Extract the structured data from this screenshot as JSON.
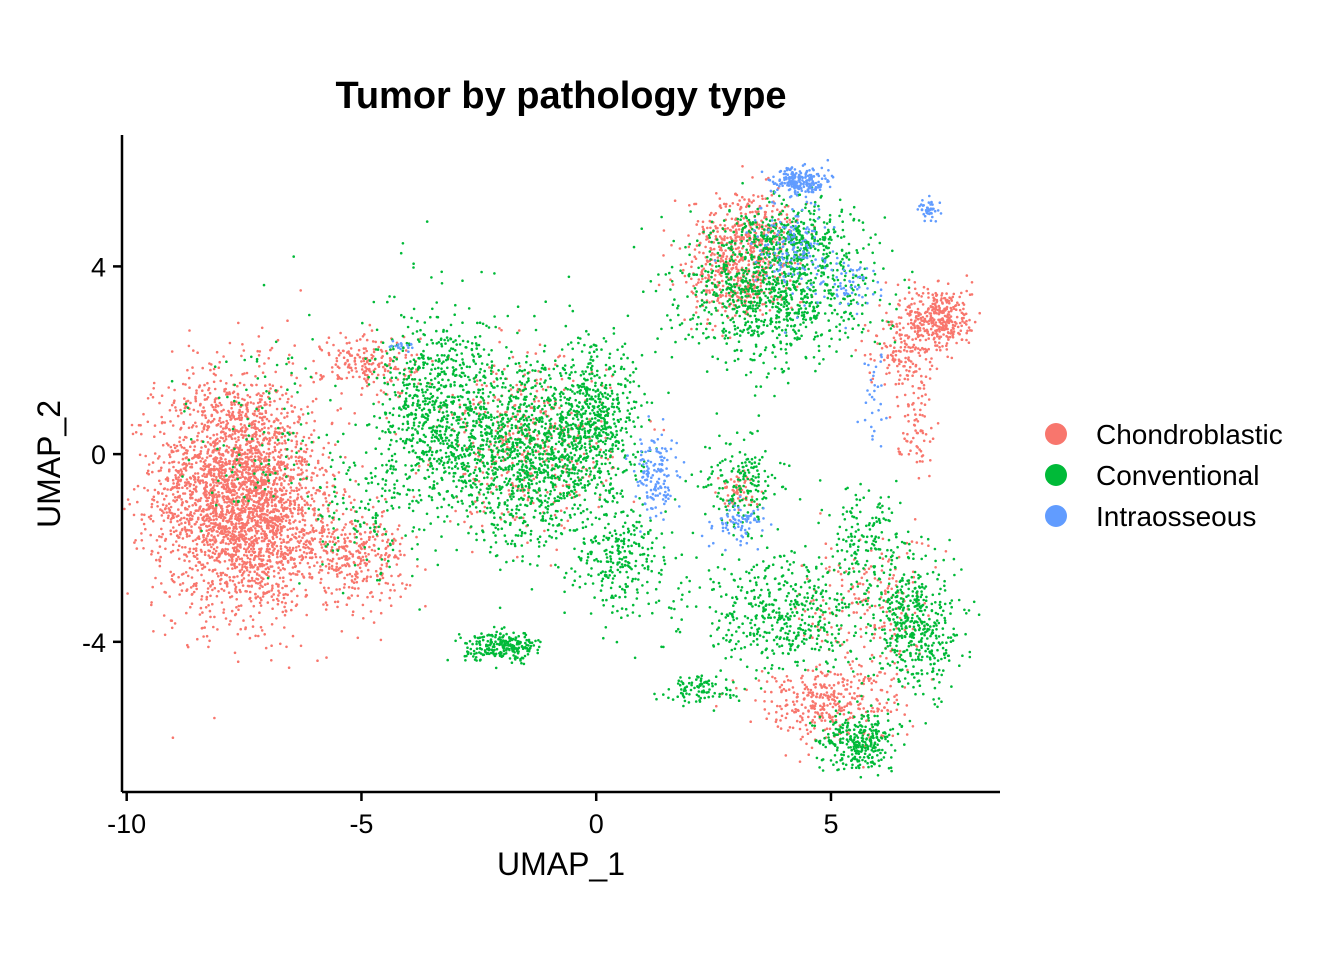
{
  "chart_data": {
    "type": "scatter",
    "title": "Tumor by pathology type",
    "xlabel": "UMAP_1",
    "ylabel": "UMAP_2",
    "xlim": [
      -10.1,
      8.6
    ],
    "ylim": [
      -7.2,
      6.8
    ],
    "xticks": [
      -10,
      -5,
      0,
      5
    ],
    "yticks": [
      -4,
      0,
      4
    ],
    "xtick_labels": [
      "-10",
      "-5",
      "0",
      "5"
    ],
    "ytick_labels": [
      "-4",
      "0",
      "4"
    ],
    "grid": false,
    "legend_position": "right",
    "series": [
      {
        "name": "Chondroblastic",
        "color": "#F8766D",
        "clusters": [
          {
            "cx": -7.7,
            "cy": -0.8,
            "sx": 0.85,
            "sy": 1.25,
            "n": 2600
          },
          {
            "cx": -6.9,
            "cy": -1.6,
            "sx": 0.7,
            "sy": 0.8,
            "n": 500
          },
          {
            "cx": -5.2,
            "cy": -2.2,
            "sx": 0.6,
            "sy": 0.5,
            "n": 350
          },
          {
            "cx": -4.8,
            "cy": 1.9,
            "sx": 0.5,
            "sy": 0.35,
            "n": 200
          },
          {
            "cx": -1.5,
            "cy": 0.2,
            "sx": 0.9,
            "sy": 0.9,
            "n": 400
          },
          {
            "cx": 3.2,
            "cy": 4.6,
            "sx": 0.6,
            "sy": 0.5,
            "n": 450
          },
          {
            "cx": 2.9,
            "cy": 3.6,
            "sx": 0.5,
            "sy": 0.4,
            "n": 250
          },
          {
            "cx": 7.3,
            "cy": 2.9,
            "sx": 0.35,
            "sy": 0.35,
            "n": 350
          },
          {
            "cx": 6.5,
            "cy": 2.2,
            "sx": 0.35,
            "sy": 0.4,
            "n": 150
          },
          {
            "cx": 6.8,
            "cy": 0.8,
            "sx": 0.2,
            "sy": 0.6,
            "n": 80
          },
          {
            "cx": 3.0,
            "cy": -0.8,
            "sx": 0.2,
            "sy": 0.2,
            "n": 60
          },
          {
            "cx": 4.9,
            "cy": -5.3,
            "sx": 0.8,
            "sy": 0.4,
            "n": 350
          },
          {
            "cx": 5.8,
            "cy": -3.3,
            "sx": 0.7,
            "sy": 0.8,
            "n": 200
          }
        ]
      },
      {
        "name": "Conventional",
        "color": "#00BA38",
        "clusters": [
          {
            "cx": -3.3,
            "cy": 0.8,
            "sx": 0.7,
            "sy": 1.1,
            "n": 900
          },
          {
            "cx": -1.3,
            "cy": 0.0,
            "sx": 0.8,
            "sy": 1.0,
            "n": 1100
          },
          {
            "cx": 0.0,
            "cy": 0.7,
            "sx": 0.5,
            "sy": 0.8,
            "n": 500
          },
          {
            "cx": -2.0,
            "cy": -4.1,
            "sx": 0.4,
            "sy": 0.15,
            "n": 250
          },
          {
            "cx": 3.8,
            "cy": 3.4,
            "sx": 1.0,
            "sy": 0.7,
            "n": 900
          },
          {
            "cx": 4.2,
            "cy": 4.6,
            "sx": 0.7,
            "sy": 0.4,
            "n": 350
          },
          {
            "cx": 3.1,
            "cy": -0.6,
            "sx": 0.4,
            "sy": 0.5,
            "n": 180
          },
          {
            "cx": 0.6,
            "cy": -2.3,
            "sx": 0.5,
            "sy": 0.6,
            "n": 250
          },
          {
            "cx": 4.0,
            "cy": -3.4,
            "sx": 1.0,
            "sy": 0.6,
            "n": 500
          },
          {
            "cx": 6.8,
            "cy": -3.7,
            "sx": 0.45,
            "sy": 0.7,
            "n": 450
          },
          {
            "cx": 5.6,
            "cy": -6.1,
            "sx": 0.4,
            "sy": 0.3,
            "n": 300
          },
          {
            "cx": 5.8,
            "cy": -1.8,
            "sx": 0.4,
            "sy": 0.6,
            "n": 150
          },
          {
            "cx": 2.2,
            "cy": -5.0,
            "sx": 0.4,
            "sy": 0.15,
            "n": 100
          },
          {
            "cx": -7.0,
            "cy": 0.3,
            "sx": 0.8,
            "sy": 1.2,
            "n": 120
          },
          {
            "cx": -5.0,
            "cy": -1.2,
            "sx": 0.6,
            "sy": 0.8,
            "n": 120
          }
        ]
      },
      {
        "name": "Intraosseous",
        "color": "#619CFF",
        "clusters": [
          {
            "cx": 4.3,
            "cy": 5.8,
            "sx": 0.3,
            "sy": 0.15,
            "n": 220
          },
          {
            "cx": 4.2,
            "cy": 4.3,
            "sx": 0.45,
            "sy": 0.5,
            "n": 150
          },
          {
            "cx": 5.4,
            "cy": 3.6,
            "sx": 0.3,
            "sy": 0.3,
            "n": 60
          },
          {
            "cx": 7.1,
            "cy": 5.2,
            "sx": 0.1,
            "sy": 0.12,
            "n": 45
          },
          {
            "cx": 1.3,
            "cy": -0.5,
            "sx": 0.25,
            "sy": 0.45,
            "n": 140
          },
          {
            "cx": 3.0,
            "cy": -1.5,
            "sx": 0.3,
            "sy": 0.2,
            "n": 80
          },
          {
            "cx": -4.1,
            "cy": 2.3,
            "sx": 0.12,
            "sy": 0.08,
            "n": 18
          },
          {
            "cx": 5.9,
            "cy": 1.3,
            "sx": 0.15,
            "sy": 0.5,
            "n": 30
          }
        ]
      }
    ]
  }
}
